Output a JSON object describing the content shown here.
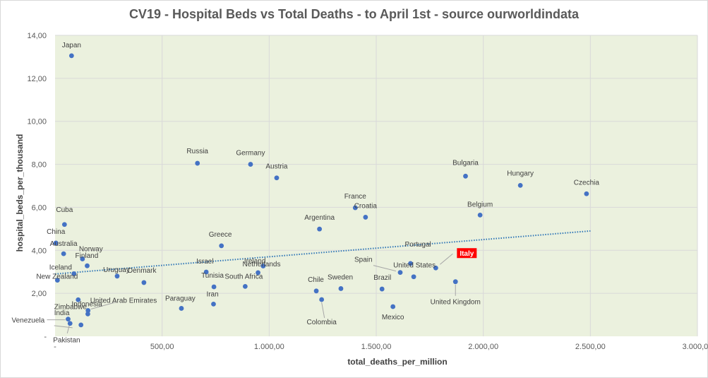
{
  "chart_data": {
    "type": "scatter",
    "title": "CV19 - Hospital Beds vs Total Deaths - to April 1st - source ourworldindata",
    "xlabel": "total_deaths_per_million",
    "ylabel": "hospital_beds_per_thousand",
    "xlim": [
      0,
      3000
    ],
    "ylim": [
      0,
      14
    ],
    "x_ticks": [
      "-",
      "500,00",
      "1.000,00",
      "1.500,00",
      "2.000,00",
      "2.500,00",
      "3.000,00"
    ],
    "y_ticks": [
      "-",
      "2,00",
      "4,00",
      "6,00",
      "8,00",
      "10,00",
      "12,00",
      "14,00"
    ],
    "grid": true,
    "legend": "none",
    "colors": {
      "plot_background": "#ebf1de",
      "marker": "#4472c4",
      "trendline": "#2e75b6",
      "highlight": "#ff0000"
    },
    "trendline": {
      "style": "dotted linear",
      "x": [
        0,
        2500
      ],
      "y": [
        2.9,
        4.9
      ]
    },
    "points": [
      {
        "label": "Japan",
        "x": 77,
        "y": 13.05
      },
      {
        "label": "Russia",
        "x": 665,
        "y": 8.05
      },
      {
        "label": "Germany",
        "x": 913,
        "y": 8.0
      },
      {
        "label": "Austria",
        "x": 1035,
        "y": 7.37
      },
      {
        "label": "Bulgaria",
        "x": 1917,
        "y": 7.45
      },
      {
        "label": "Hungary",
        "x": 2173,
        "y": 7.02
      },
      {
        "label": "Czechia",
        "x": 2482,
        "y": 6.63
      },
      {
        "label": "Belgium",
        "x": 1985,
        "y": 5.64
      },
      {
        "label": "France",
        "x": 1402,
        "y": 5.98
      },
      {
        "label": "Croatia",
        "x": 1450,
        "y": 5.54
      },
      {
        "label": "Argentina",
        "x": 1235,
        "y": 4.99
      },
      {
        "label": "Cuba",
        "x": 44,
        "y": 5.2
      },
      {
        "label": "China",
        "x": 4,
        "y": 4.34
      },
      {
        "label": "Australia",
        "x": 40,
        "y": 3.84
      },
      {
        "label": "Norway",
        "x": 128,
        "y": 3.6
      },
      {
        "label": "Finland",
        "x": 150,
        "y": 3.28
      },
      {
        "label": "Iceland",
        "x": 88,
        "y": 2.91
      },
      {
        "label": "New Zealand",
        "x": 11,
        "y": 2.61
      },
      {
        "label": "Uruguay",
        "x": 290,
        "y": 2.8
      },
      {
        "label": "Denmark",
        "x": 415,
        "y": 2.5
      },
      {
        "label": "Greece",
        "x": 777,
        "y": 4.21
      },
      {
        "label": "Israel",
        "x": 706,
        "y": 2.99
      },
      {
        "label": "Tunisia",
        "x": 742,
        "y": 2.3
      },
      {
        "label": "Netherlands",
        "x": 948,
        "y": 2.96
      },
      {
        "label": "Ireland",
        "x": 972,
        "y": 3.27
      },
      {
        "label": "South Africa",
        "x": 888,
        "y": 2.32
      },
      {
        "label": "Iran",
        "x": 740,
        "y": 1.5
      },
      {
        "label": "Paraguay",
        "x": 590,
        "y": 1.3
      },
      {
        "label": "Zimbabwe",
        "x": 108,
        "y": 1.7
      },
      {
        "label": "United Arab Emirates",
        "x": 154,
        "y": 1.2
      },
      {
        "label": "Indonesia",
        "x": 153,
        "y": 1.04
      },
      {
        "label": "India",
        "x": 121,
        "y": 0.53
      },
      {
        "label": "Venezuela",
        "x": 61,
        "y": 0.8
      },
      {
        "label": "Pakistan",
        "x": 70,
        "y": 0.6
      },
      {
        "label": "Chile",
        "x": 1220,
        "y": 2.11
      },
      {
        "label": "Sweden",
        "x": 1335,
        "y": 2.22
      },
      {
        "label": "Colombia",
        "x": 1245,
        "y": 1.71
      },
      {
        "label": "Brazil",
        "x": 1527,
        "y": 2.2
      },
      {
        "label": "Mexico",
        "x": 1578,
        "y": 1.38
      },
      {
        "label": "Spain",
        "x": 1612,
        "y": 2.97
      },
      {
        "label": "Portugal",
        "x": 1660,
        "y": 3.39
      },
      {
        "label": "United States",
        "x": 1675,
        "y": 2.77
      },
      {
        "label": "Italy",
        "x": 1778,
        "y": 3.18
      },
      {
        "label": "United Kingdom",
        "x": 1870,
        "y": 2.54
      }
    ]
  }
}
